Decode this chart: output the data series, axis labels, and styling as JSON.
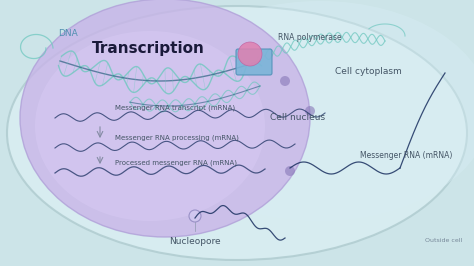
{
  "bg_color": "#cce4e8",
  "outer_cell_fc": "#daeef2",
  "outer_cell_ec": "#b0ccd0",
  "nucleus_fc": "#c8b4e8",
  "nucleus_ec": "#b0a0d8",
  "cytoplasm_tint": "#d8eef5",
  "dna_color": "#70c8c0",
  "dna_dark": "#2a6080",
  "mrna_color": "#1a3060",
  "rna_pol_fc": "#7ab4d8",
  "rna_pol_ec": "#5090b8",
  "pink_fc": "#e080b0",
  "title": "Transcription",
  "title_color": "#1a1a3a",
  "label_color": "#445566",
  "outside_color": "#778899",
  "fig_w": 4.74,
  "fig_h": 2.66,
  "dpi": 100,
  "xlim": [
    0,
    474
  ],
  "ylim": [
    0,
    266
  ]
}
